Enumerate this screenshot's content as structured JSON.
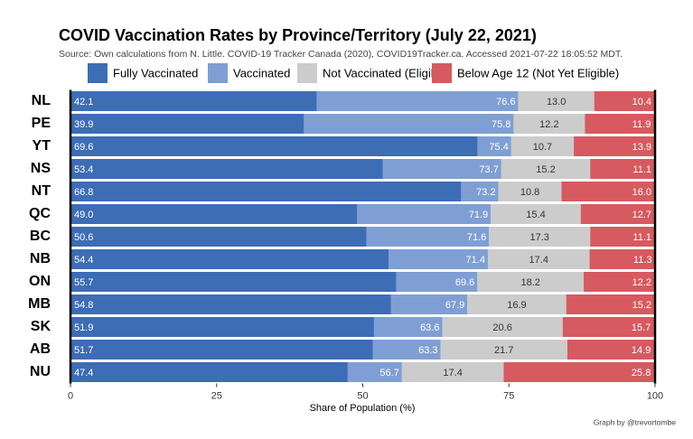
{
  "chart_data": {
    "type": "bar",
    "orientation": "horizontal",
    "layout": "overlay-then-stack",
    "title": "COVID Vaccination Rates by Province/Territory (July 22, 2021)",
    "subtitle": "Source: Own calculations from N. Little. COVID-19 Tracker Canada (2020), COVID19Tracker.ca. Accessed 2021-07-22 18:05:52 MDT.",
    "x_label": "Share of Population (%)",
    "caption": "Graph by @trevortombe",
    "categories": [
      "NL",
      "PE",
      "YT",
      "NS",
      "NT",
      "QC",
      "BC",
      "NB",
      "ON",
      "MB",
      "SK",
      "AB",
      "NU"
    ],
    "series": [
      {
        "name": "Fully Vaccinated",
        "color": "#3d6db5",
        "label_color": "#ffffff",
        "values": [
          42.1,
          39.9,
          69.6,
          53.4,
          66.8,
          49.0,
          50.6,
          54.4,
          55.7,
          54.8,
          51.9,
          51.7,
          47.4
        ],
        "value_labels": [
          "42.1",
          "39.9",
          "69.6",
          "53.4",
          "66.8",
          "49.0",
          "50.6",
          "54.4",
          "55.7",
          "54.8",
          "51.9",
          "51.7",
          "47.4"
        ]
      },
      {
        "name": "Vaccinated",
        "color": "#7f9fd4",
        "label_color": "#ffffff",
        "values": [
          76.6,
          75.8,
          75.4,
          73.7,
          73.2,
          71.9,
          71.6,
          71.4,
          69.6,
          67.9,
          63.6,
          63.3,
          56.7
        ],
        "value_labels": [
          "76.6",
          "75.8",
          "75.4",
          "73.7",
          "73.2",
          "71.9",
          "71.6",
          "71.4",
          "69.6",
          "67.9",
          "63.6",
          "63.3",
          "56.7"
        ]
      },
      {
        "name": "Not Vaccinated (Eligible)",
        "color": "#cccccc",
        "label_color": "#333333",
        "values": [
          13.0,
          12.2,
          10.7,
          15.2,
          10.8,
          15.4,
          17.3,
          17.4,
          18.2,
          16.9,
          20.6,
          21.7,
          17.4
        ],
        "value_labels": [
          "13.0",
          "12.2",
          "10.7",
          "15.2",
          "10.8",
          "15.4",
          "17.3",
          "17.4",
          "18.2",
          "16.9",
          "20.6",
          "21.7",
          "17.4"
        ]
      },
      {
        "name": "Below Age 12 (Not Yet Eligible)",
        "color": "#d65a5f",
        "label_color": "#ffffff",
        "values": [
          10.4,
          11.9,
          13.9,
          11.1,
          16.0,
          12.7,
          11.1,
          11.3,
          12.2,
          15.2,
          15.7,
          14.9,
          25.8
        ],
        "value_labels": [
          "10.4",
          "11.9",
          "13.9",
          "11.1",
          "16.0",
          "12.7",
          "11.1",
          "11.3",
          "12.2",
          "15.2",
          "15.7",
          "14.9",
          "25.8"
        ]
      }
    ],
    "xlim": [
      0,
      100
    ],
    "xticks": [
      0,
      25,
      50,
      75,
      100
    ]
  }
}
